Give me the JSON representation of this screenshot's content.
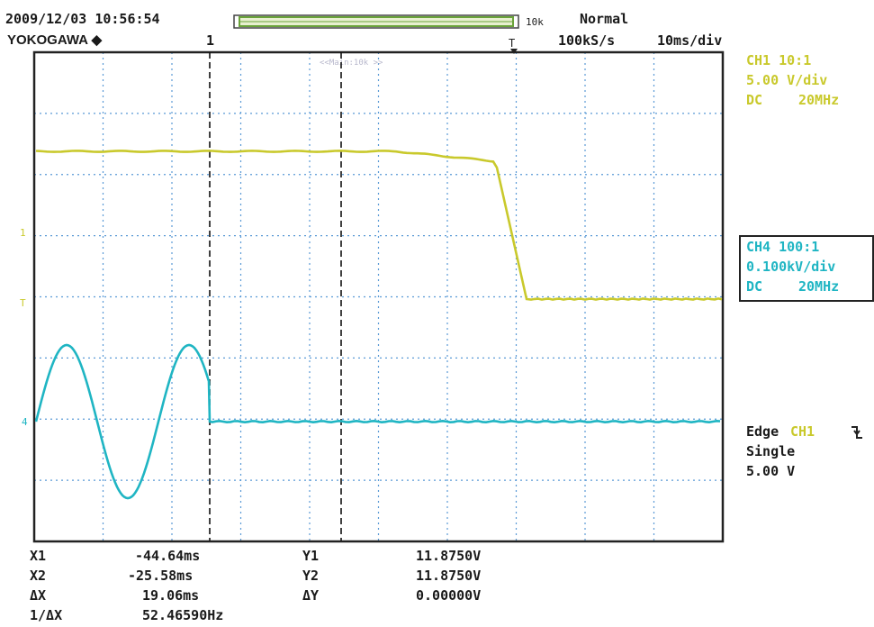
{
  "header": {
    "datetime": "2009/12/03 10:56:54",
    "brand": "YOKOGAWA",
    "brand_icon": "diamond-icon",
    "cursor_marker": "1",
    "record_length": "10k",
    "trigger_mode": "Normal",
    "sample_rate": "100kS/s",
    "time_div": "10ms/div",
    "window_label": "<<Main:10k >>"
  },
  "channels": {
    "ch1": {
      "probe": "CH1 10:1",
      "scale": "5.00 V/div",
      "coupling": "DC",
      "bandwidth": "20MHz",
      "color": "#c9c92c",
      "marker": "1"
    },
    "ch4": {
      "probe": "CH4 100:1",
      "scale": "0.100kV/div",
      "coupling": "DC",
      "bandwidth": "20MHz",
      "color": "#1fb5c3",
      "marker": "4"
    }
  },
  "trigger": {
    "type": "Edge",
    "source": "CH1",
    "slope_icon": "falling-edge-icon",
    "mode": "Single",
    "level": "5.00 V"
  },
  "measurements": {
    "x1_label": "X1",
    "x1_value": "-44.64ms",
    "x2_label": "X2",
    "x2_value": "-25.58ms",
    "dx_label": "ΔX",
    "dx_value": "19.06ms",
    "inv_dx_label": "1/ΔX",
    "inv_dx_value": "52.46590Hz",
    "y1_label": "Y1",
    "y1_value": "11.8750V",
    "y2_label": "Y2",
    "y2_value": "11.8750V",
    "dy_label": "ΔY",
    "dy_value": "0.00000V"
  },
  "colors": {
    "grid": "#5a9ad6",
    "frame": "#222222",
    "cursor": "#111111"
  }
}
